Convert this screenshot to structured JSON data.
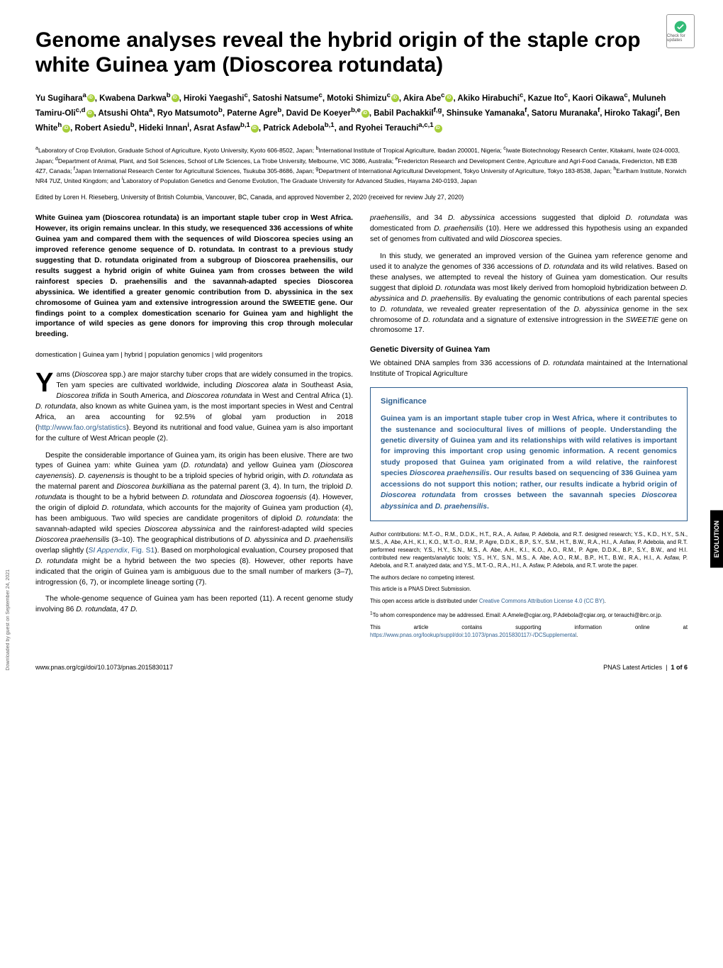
{
  "badge": {
    "text": "Check for updates"
  },
  "title": "Genome analyses reveal the hybrid origin of the staple crop white Guinea yam (Dioscorea rotundata)",
  "authors_html": "Yu Sugihara<sup>a</sup><span class='orcid' data-name='orcid-icon' data-interactable='false'></span>, Kwabena Darkwa<sup>b</sup><span class='orcid' data-name='orcid-icon' data-interactable='false'></span>, Hiroki Yaegashi<sup>c</sup>, Satoshi Natsume<sup>c</sup>, Motoki Shimizu<sup>c</sup><span class='orcid' data-name='orcid-icon' data-interactable='false'></span>, Akira Abe<sup>c</sup><span class='orcid' data-name='orcid-icon' data-interactable='false'></span>, Akiko Hirabuchi<sup>c</sup>, Kazue Ito<sup>c</sup>, Kaori Oikawa<sup>c</sup>, Muluneh Tamiru-Oli<sup>c,d</sup><span class='orcid' data-name='orcid-icon' data-interactable='false'></span>, Atsushi Ohta<sup>a</sup>, Ryo Matsumoto<sup>b</sup>, Paterne Agre<sup>b</sup>, David De Koeyer<sup>b,e</sup><span class='orcid' data-name='orcid-icon' data-interactable='false'></span>, Babil Pachakkil<sup>f,g</sup>, Shinsuke Yamanaka<sup>f</sup>, Satoru Muranaka<sup>f</sup>, Hiroko Takagi<sup>f</sup>, Ben White<sup>h</sup><span class='orcid' data-name='orcid-icon' data-interactable='false'></span>, Robert Asiedu<sup>b</sup>, Hideki Innan<sup>i</sup>, Asrat Asfaw<sup>b,1</sup><span class='orcid' data-name='orcid-icon' data-interactable='false'></span>, Patrick Adebola<sup>b,1</sup>, and Ryohei Terauchi<sup>a,c,1</sup><span class='orcid' data-name='orcid-icon' data-interactable='false'></span>",
  "affiliations": "<sup>a</sup>Laboratory of Crop Evolution, Graduate School of Agriculture, Kyoto University, Kyoto 606-8502, Japan; <sup>b</sup>International Institute of Tropical Agriculture, Ibadan 200001, Nigeria; <sup>c</sup>Iwate Biotechnology Research Center, Kitakami, Iwate 024-0003, Japan; <sup>d</sup>Department of Animal, Plant, and Soil Sciences, School of Life Sciences, La Trobe University, Melbourne, VIC 3086, Australia; <sup>e</sup>Fredericton Research and Development Centre, Agriculture and Agri-Food Canada, Fredericton, NB E3B 4Z7, Canada; <sup>f</sup>Japan International Research Center for Agricultural Sciences, Tsukuba 305-8686, Japan; <sup>g</sup>Department of International Agricultural Development, Tokyo University of Agriculture, Tokyo 183-8538, Japan; <sup>h</sup>Earlham Institute, Norwich NR4 7UZ, United Kingdom; and <sup>i</sup>Laboratory of Population Genetics and Genome Evolution, The Graduate University for Advanced Studies, Hayama 240-0193, Japan",
  "editor_line": "Edited by Loren H. Rieseberg, University of British Columbia, Vancouver, BC, Canada, and approved November 2, 2020 (received for review July 27, 2020)",
  "side_tab": "EVOLUTION",
  "left_col": {
    "abstract": "White Guinea yam (Dioscorea rotundata) is an important staple tuber crop in West Africa. However, its origin remains unclear. In this study, we resequenced 336 accessions of white Guinea yam and compared them with the sequences of wild Dioscorea species using an improved reference genome sequence of D. rotundata. In contrast to a previous study suggesting that D. rotundata originated from a subgroup of Dioscorea praehensilis, our results suggest a hybrid origin of white Guinea yam from crosses between the wild rainforest species D. praehensilis and the savannah-adapted species Dioscorea abyssinica. We identified a greater genomic contribution from D. abyssinica in the sex chromosome of Guinea yam and extensive introgression around the SWEETIE gene. Our findings point to a complex domestication scenario for Guinea yam and highlight the importance of wild species as gene donors for improving this crop through molecular breeding.",
    "keywords": "domestication | Guinea yam | hybrid | population genomics | wild progenitors",
    "p1_html": "ams (<i>Dioscorea</i> spp.) are major starchy tuber crops that are widely consumed in the tropics. Ten yam species are cultivated worldwide, including <i>Dioscorea alata</i> in Southeast Asia, <i>Dioscorea trifida</i> in South America, and <i>Dioscorea rotundata</i> in West and Central Africa (1). <i>D. rotundata</i>, also known as white Guinea yam, is the most important species in West and Central Africa, an area accounting for 92.5% of global yam production in 2018 (<a class='link' data-name='fao-link' data-interactable='true'>http://www.fao.org/statistics</a>). Beyond its nutritional and food value, Guinea yam is also important for the culture of West African people (2).",
    "p2_html": "Despite the considerable importance of Guinea yam, its origin has been elusive. There are two types of Guinea yam: white Guinea yam (<i>D. rotundata</i>) and yellow Guinea yam (<i>Dioscorea cayenensis</i>). <i>D. cayenensis</i> is thought to be a triploid species of hybrid origin, with <i>D. rotundata</i> as the maternal parent and <i>Dioscorea burkilliana</i> as the paternal parent (3, 4). In turn, the triploid <i>D. rotundata</i> is thought to be a hybrid between <i>D. rotundata</i> and <i>Dioscorea togoensis</i> (4). However, the origin of diploid <i>D. rotundata</i>, which accounts for the majority of Guinea yam production (4), has been ambiguous. Two wild species are candidate progenitors of diploid <i>D. rotundata</i>: the savannah-adapted wild species <i>Dioscorea abyssinica</i> and the rainforest-adapted wild species <i>Dioscorea praehensilis</i> (3–10). The geographical distributions of <i>D. abyssinica</i> and <i>D. praehensilis</i> overlap slightly (<a class='link' data-name='si-appendix-link' data-interactable='true'><i>SI Appendix</i>, Fig. S1</a>). Based on morphological evaluation, Coursey proposed that <i>D. rotundata</i> might be a hybrid between the two species (8). However, other reports have indicated that the origin of Guinea yam is ambiguous due to the small number of markers (3–7), introgression (6, 7), or incomplete lineage sorting (7).",
    "p3_html": "The whole-genome sequence of Guinea yam has been reported (11). A recent genome study involving 86 <i>D. rotundata</i>, 47 <i>D.</i>"
  },
  "right_col": {
    "p1_html": "<i>praehensilis</i>, and 34 <i>D. abyssinica</i> accessions suggested that diploid <i>D. rotundata</i> was domesticated from <i>D. praehensilis</i> (10). Here we addressed this hypothesis using an expanded set of genomes from cultivated and wild <i>Dioscorea</i> species.",
    "p2_html": "In this study, we generated an improved version of the Guinea yam reference genome and used it to analyze the genomes of 336 accessions of <i>D. rotundata</i> and its wild relatives. Based on these analyses, we attempted to reveal the history of Guinea yam domestication. Our results suggest that diploid <i>D. rotundata</i> was most likely derived from homoploid hybridization between <i>D. abyssinica</i> and <i>D. praehensilis</i>. By evaluating the genomic contributions of each parental species to <i>D. rotundata</i>, we revealed greater representation of the <i>D. abyssinica</i> genome in the sex chromosome of <i>D. rotundata</i> and a signature of extensive introgression in the <i>SWEETIE</i> gene on chromosome 17.",
    "section_head": "Genetic Diversity of Guinea Yam",
    "p3_html": "We obtained DNA samples from 336 accessions of <i>D. rotundata</i> maintained at the International Institute of Tropical Agriculture",
    "sig_title": "Significance",
    "sig_body_html": "Guinea yam is an important staple tuber crop in West Africa, where it contributes to the sustenance and sociocultural lives of millions of people. Understanding the genetic diversity of Guinea yam and its relationships with wild relatives is important for improving this important crop using genomic information. A recent genomics study proposed that Guinea yam originated from a wild relative, the rainforest species <i>Dioscorea praehensilis</i>. Our results based on sequencing of 336 Guinea yam accessions do not support this notion; rather, our results indicate a hybrid origin of <i>Dioscorea rotundata</i> from crosses between the savannah species <i>Dioscorea abyssinica</i> and <i>D. praehensilis</i>.",
    "meta": {
      "contrib": "Author contributions: M.T.-O., R.M., D.D.K., H.T., R.A., A. Asfaw, P. Adebola, and R.T. designed research; Y.S., K.D., H.Y., S.N., M.S., A. Abe, A.H., K.I., K.O., M.T.-O., R.M., P. Agre, D.D.K., B.P., S.Y., S.M., H.T., B.W., R.A., H.I., A. Asfaw, P. Adebola, and R.T. performed research; Y.S., H.Y., S.N., M.S., A. Abe, A.H., K.I., K.O., A.O., R.M., P. Agre, D.D.K., B.P., S.Y., B.W., and H.I. contributed new reagents/analytic tools; Y.S., H.Y., S.N., M.S., A. Abe, A.O., R.M., B.P., H.T., B.W., R.A., H.I., A. Asfaw, P. Adebola, and R.T. analyzed data; and Y.S., M.T.-O., R.A., H.I., A. Asfaw, P. Adebola, and R.T. wrote the paper.",
      "coi": "The authors declare no competing interest.",
      "direct": "This article is a PNAS Direct Submission.",
      "license_html": "This open access article is distributed under <a class='link' data-name='license-link' data-interactable='true'>Creative Commons Attribution License 4.0 (CC BY)</a>.",
      "corr_html": "<sup>1</sup>To whom correspondence may be addressed. Email: A.Amele@cgiar.org, P.Adebola@cgiar.org, or terauchi@ibrc.or.jp.",
      "supp_html": "This article contains supporting information online at <a class='link' data-name='suppl-link' data-interactable='true'>https://www.pnas.org/lookup/suppl/doi:10.1073/pnas.2015830117/-/DCSupplemental</a>."
    }
  },
  "footer": {
    "left": "www.pnas.org/cgi/doi/10.1073/pnas.2015830117",
    "right_html": "PNAS Latest Articles &nbsp;|&nbsp; <b>1 of 6</b>"
  },
  "download_note": "Downloaded by guest on September 24, 2021",
  "colors": {
    "accent_blue": "#2e5e8e",
    "orcid_green": "#a6ce39",
    "text": "#000000",
    "bg": "#ffffff"
  }
}
